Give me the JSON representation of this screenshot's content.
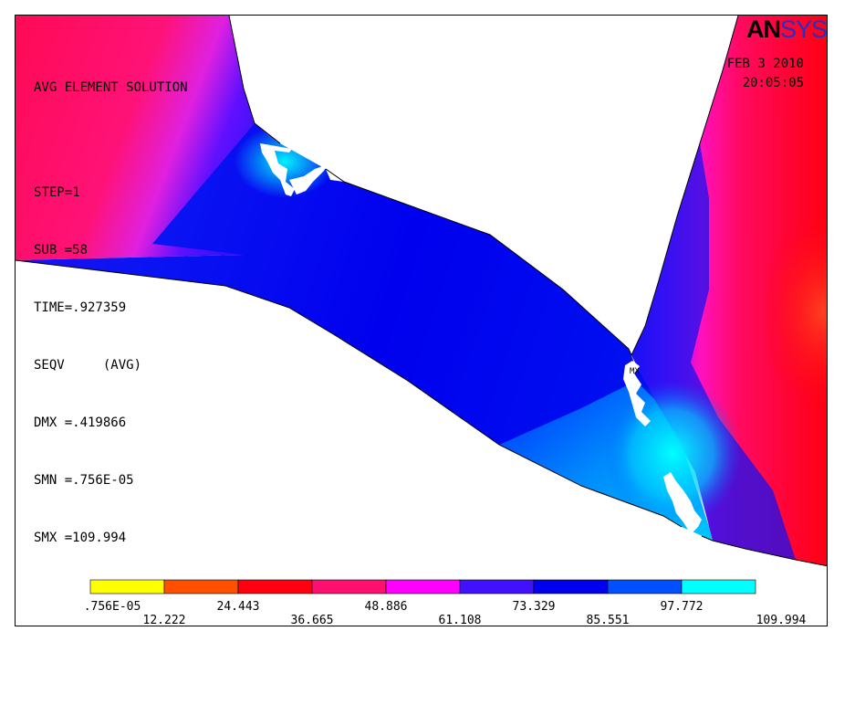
{
  "header": {
    "title": "AVG ELEMENT SOLUTION",
    "lines": [
      "STEP=1",
      "SUB =58",
      "TIME=.927359",
      "SEQV     (AVG)",
      "DMX =.419866",
      "SMN =.756E-05",
      "SMX =109.994"
    ]
  },
  "logo": {
    "part1": "AN",
    "part2": "SYS"
  },
  "date": {
    "day": "FEB  3 2010",
    "time": "20:05:05"
  },
  "legend": {
    "colors": [
      "#ffff00",
      "#ff5000",
      "#ff0010",
      "#ff1070",
      "#ff00ff",
      "#4010ff",
      "#0000ee",
      "#0050ff",
      "#00ffff"
    ],
    "labels_top": [
      ".756E-05",
      "24.443",
      "48.886",
      "73.329",
      "97.772"
    ],
    "labels_bottom": [
      "12.222",
      "36.665",
      "61.108",
      "85.551",
      "109.994"
    ]
  },
  "marker": "MX"
}
